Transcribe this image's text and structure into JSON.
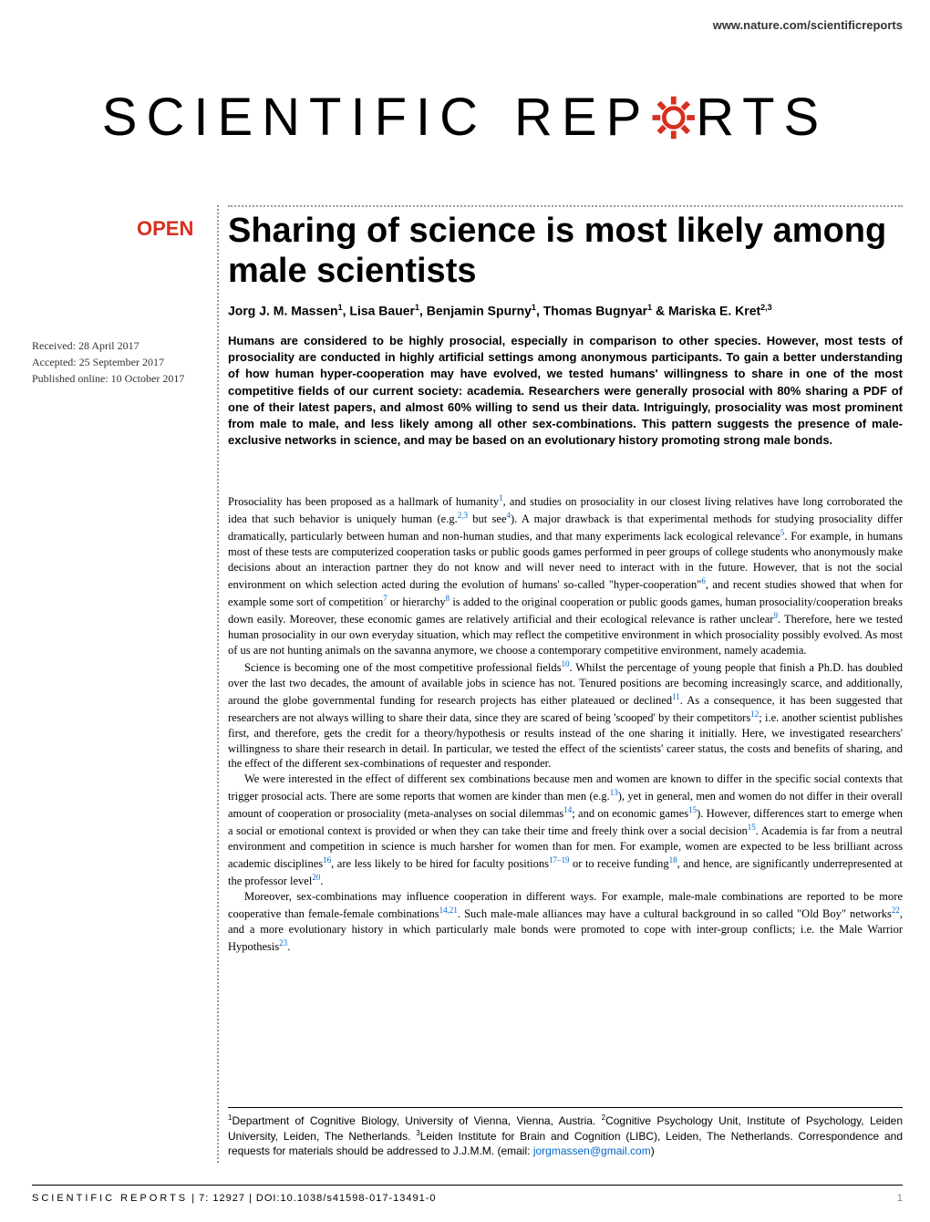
{
  "header": {
    "website": "www.nature.com/scientificreports",
    "journal_name_left": "SCIENTIFIC",
    "journal_name_right": "RTS",
    "journal_name_middle": "REP"
  },
  "badge": "OPEN",
  "title": "Sharing of science is most likely among male scientists",
  "authors_html": "Jorg J. M. Massen<sup>1</sup>, Lisa Bauer<sup>1</sup>, Benjamin Spurny<sup>1</sup>, Thomas Bugnyar<sup>1</sup> & Mariska E. Kret<sup>2,3</sup>",
  "dates": {
    "received": "Received: 28 April 2017",
    "accepted": "Accepted: 25 September 2017",
    "published": "Published online: 10 October 2017"
  },
  "abstract": "Humans are considered to be highly prosocial, especially in comparison to other species. However, most tests of prosociality are conducted in highly artificial settings among anonymous participants. To gain a better understanding of how human hyper-cooperation may have evolved, we tested humans' willingness to share in one of the most competitive fields of our current society: academia. Researchers were generally prosocial with 80% sharing a PDF of one of their latest papers, and almost 60% willing to send us their data. Intriguingly, prosociality was most prominent from male to male, and less likely among all other sex-combinations. This pattern suggests the presence of male-exclusive networks in science, and may be based on an evolutionary history promoting strong male bonds.",
  "body": {
    "p1": "Prosociality has been proposed as a hallmark of humanity<sup class='cite'>1</sup>, and studies on prosociality in our closest living relatives have long corroborated the idea that such behavior is uniquely human (e.g.<sup class='cite'>2,3</sup> but see<sup class='cite'>4</sup>). A major drawback is that experimental methods for studying prosociality differ dramatically, particularly between human and non-human studies, and that many experiments lack ecological relevance<sup class='cite'>5</sup>. For example, in humans most of these tests are computerized cooperation tasks or public goods games performed in peer groups of college students who anonymously make decisions about an interaction partner they do not know and will never need to interact with in the future. However, that is not the social environment on which selection acted during the evolution of humans' so-called \"hyper-cooperation\"<sup class='cite'>6</sup>, and recent studies showed that when for example some sort of competition<sup class='cite'>7</sup> or hierarchy<sup class='cite'>8</sup> is added to the original cooperation or public goods games, human prosociality/cooperation breaks down easily. Moreover, these economic games are relatively artificial and their ecological relevance is rather unclear<sup class='cite'>9</sup>. Therefore, here we tested human prosociality in our own everyday situation, which may reflect the competitive environment in which prosociality possibly evolved. As most of us are not hunting animals on the savanna anymore, we choose a contemporary competitive environment, namely academia.",
    "p2": "Science is becoming one of the most competitive professional fields<sup class='cite'>10</sup>. Whilst the percentage of young people that finish a Ph.D. has doubled over the last two decades, the amount of available jobs in science has not. Tenured positions are becoming increasingly scarce, and additionally, around the globe governmental funding for research projects has either plateaued or declined<sup class='cite'>11</sup>. As a consequence, it has been suggested that researchers are not always willing to share their data, since they are scared of being 'scooped' by their competitors<sup class='cite'>12</sup>; i.e. another scientist publishes first, and therefore, gets the credit for a theory/hypothesis or results instead of the one sharing it initially. Here, we investigated researchers' willingness to share their research in detail. In particular, we tested the effect of the scientists' career status, the costs and benefits of sharing, and the effect of the different sex-combinations of requester and responder.",
    "p3": "We were interested in the effect of different sex combinations because men and women are known to differ in the specific social contexts that trigger prosocial acts. There are some reports that women are kinder than men (e.g.<sup class='cite'>13</sup>), yet in general, men and women do not differ in their overall amount of cooperation or prosociality (meta-analyses on social dilemmas<sup class='cite'>14</sup>; and on economic games<sup class='cite'>15</sup>). However, differences start to emerge when a social or emotional context is provided or when they can take their time and freely think over a social decision<sup class='cite'>15</sup>. Academia is far from a neutral environment and competition in science is much harsher for women than for men. For example, women are expected to be less brilliant across academic disciplines<sup class='cite'>16</sup>, are less likely to be hired for faculty positions<sup class='cite'>17–19</sup> or to receive funding<sup class='cite'>18</sup>, and hence, are significantly underrepresented at the professor level<sup class='cite'>20</sup>.",
    "p4": "Moreover, sex-combinations may influence cooperation in different ways. For example, male-male combinations are reported to be more cooperative than female-female combinations<sup class='cite'>14,21</sup>. Such male-male alliances may have a cultural background in so called \"Old Boy\" networks<sup class='cite'>22</sup>, and a more evolutionary history in which particularly male bonds were promoted to cope with inter-group conflicts; i.e. the Male Warrior Hypothesis<sup class='cite'>23</sup>."
  },
  "affiliations_html": "<sup>1</sup>Department of Cognitive Biology, University of Vienna, Vienna, Austria. <sup>2</sup>Cognitive Psychology Unit, Institute of Psychology, Leiden University, Leiden, The Netherlands. <sup>3</sup>Leiden Institute for Brain and Cognition (LIBC), Leiden, The Netherlands. Correspondence and requests for materials should be addressed to J.J.M.M. (email: <span class='email'>jorgmassen@gmail.com</span>)",
  "footer": {
    "journal_ref_name": "SCIENTIFIC REPORTS",
    "journal_ref_details": " | 7: 12927 | DOI:10.1038/s41598-017-13491-0",
    "page_num": "1"
  },
  "colors": {
    "accent_red": "#d63020",
    "link_blue": "#0066cc",
    "text_black": "#000000",
    "gray": "#888888"
  }
}
